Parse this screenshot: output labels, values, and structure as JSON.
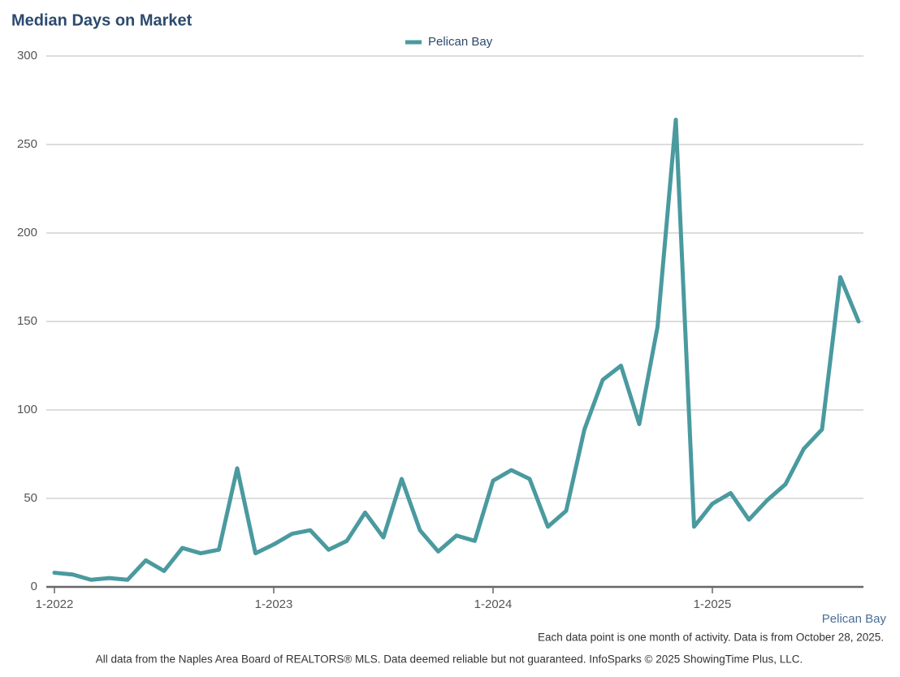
{
  "chart_data": {
    "type": "line",
    "title": "Median Days on Market",
    "categories": [
      "1-2022",
      null,
      null,
      null,
      null,
      null,
      null,
      null,
      null,
      null,
      null,
      null,
      "1-2023",
      null,
      null,
      null,
      null,
      null,
      null,
      null,
      null,
      null,
      null,
      null,
      "1-2024",
      null,
      null,
      null,
      null,
      null,
      null,
      null,
      null,
      null,
      null,
      null,
      "1-2025",
      null,
      null,
      null,
      null,
      null,
      null,
      null,
      null
    ],
    "series": [
      {
        "name": "Pelican Bay",
        "color": "#4a9a9f",
        "values": [
          8,
          7,
          4,
          5,
          4,
          15,
          9,
          22,
          19,
          21,
          67,
          19,
          24,
          30,
          32,
          21,
          26,
          42,
          28,
          61,
          32,
          20,
          29,
          26,
          60,
          66,
          61,
          34,
          43,
          89,
          117,
          125,
          92,
          147,
          264,
          34,
          47,
          53,
          38,
          49,
          58,
          78,
          89,
          175,
          150
        ]
      }
    ],
    "ylim": [
      0,
      300
    ],
    "yticks": [
      0,
      50,
      100,
      150,
      200,
      250,
      300
    ],
    "grid": true,
    "series_label": "Pelican Bay",
    "note": "Each data point is one month of activity. Data is from October 28, 2025.",
    "source": "All data from the Naples Area Board of REALTORS® MLS. Data deemed reliable but not guaranteed. InfoSparks © 2025 ShowingTime Plus, LLC."
  }
}
